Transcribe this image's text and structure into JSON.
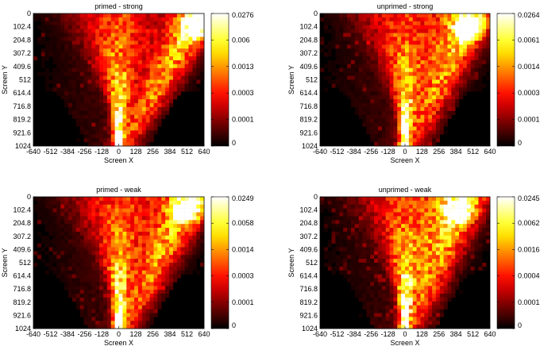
{
  "chart_data": [
    {
      "type": "heatmap",
      "title": "primed - strong",
      "xlabel": "Screen X",
      "ylabel": "Screen Y",
      "x_ticks": [
        "-640",
        "-512",
        "-384",
        "-256",
        "-128",
        "0",
        "128",
        "256",
        "384",
        "512",
        "640"
      ],
      "y_ticks": [
        "0",
        "102.4",
        "204.8",
        "307.2",
        "409.6",
        "512",
        "614.4",
        "716.8",
        "819.2",
        "921.6",
        "1024"
      ],
      "xlim": [
        -640,
        640
      ],
      "ylim": [
        0,
        1024
      ],
      "y_inverted": true,
      "colormap": "hot",
      "colorbar_scale": "log",
      "colorbar_ticks": [
        "0.0276",
        "0.006",
        "0.0013",
        "0.0003",
        "0.0001",
        "0"
      ],
      "hotspot_right": 0.9,
      "scatter": 0.06
    },
    {
      "type": "heatmap",
      "title": "unprimed - strong",
      "xlabel": "Screen X",
      "ylabel": "Screen Y",
      "x_ticks": [
        "-640",
        "-512",
        "-384",
        "-256",
        "-128",
        "0",
        "128",
        "256",
        "384",
        "512",
        "640"
      ],
      "y_ticks": [
        "0",
        "102.4",
        "204.8",
        "307.2",
        "409.6",
        "512",
        "614.4",
        "716.8",
        "819.2",
        "921.6",
        "1024"
      ],
      "xlim": [
        -640,
        640
      ],
      "ylim": [
        0,
        1024
      ],
      "y_inverted": true,
      "colormap": "hot",
      "colorbar_scale": "log",
      "colorbar_ticks": [
        "0.0264",
        "0.0061",
        "0.0014",
        "0.0003",
        "0.0001",
        "0"
      ],
      "hotspot_right": 0.75,
      "scatter": 0.14
    },
    {
      "type": "heatmap",
      "title": "primed - weak",
      "xlabel": "Screen X",
      "ylabel": "Screen Y",
      "x_ticks": [
        "-640",
        "-512",
        "-384",
        "-256",
        "-128",
        "0",
        "128",
        "256",
        "384",
        "512",
        "640"
      ],
      "y_ticks": [
        "0",
        "102.4",
        "204.8",
        "307.2",
        "409.6",
        "512",
        "614.4",
        "716.8",
        "819.2",
        "921.6",
        "1024"
      ],
      "xlim": [
        -640,
        640
      ],
      "ylim": [
        0,
        1024
      ],
      "y_inverted": true,
      "colormap": "hot",
      "colorbar_scale": "log",
      "colorbar_ticks": [
        "0.0249",
        "0.0058",
        "0.0014",
        "0.0003",
        "0.0001",
        "0"
      ],
      "hotspot_right": 0.8,
      "scatter": 0.08
    },
    {
      "type": "heatmap",
      "title": "unprimed - weak",
      "xlabel": "Screen X",
      "ylabel": "Screen Y",
      "x_ticks": [
        "-640",
        "-512",
        "-384",
        "-256",
        "-128",
        "0",
        "128",
        "256",
        "384",
        "512",
        "640"
      ],
      "y_ticks": [
        "0",
        "102.4",
        "204.8",
        "307.2",
        "409.6",
        "512",
        "614.4",
        "716.8",
        "819.2",
        "921.6",
        "1024"
      ],
      "xlim": [
        -640,
        640
      ],
      "ylim": [
        0,
        1024
      ],
      "y_inverted": true,
      "colormap": "hot",
      "colorbar_scale": "log",
      "colorbar_ticks": [
        "0.0245",
        "0.0062",
        "0.0016",
        "0.0004",
        "0.0001",
        "0"
      ],
      "hotspot_right": 0.65,
      "scatter": 0.16
    }
  ]
}
